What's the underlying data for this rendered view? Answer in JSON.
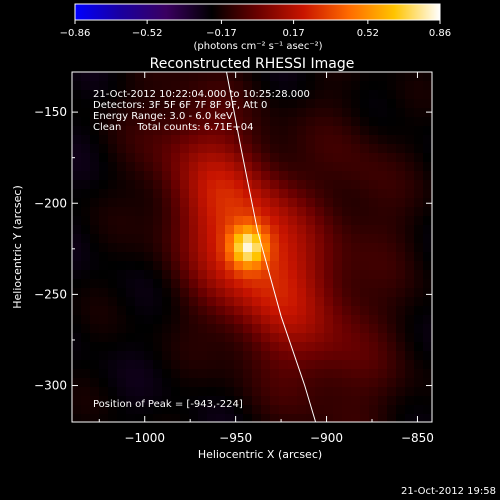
{
  "chart_data": {
    "type": "heatmap",
    "title": "Reconstructed RHESSI Image",
    "xlabel": "Heliocentric X (arcsec)",
    "ylabel": "Heliocentric Y (arcsec)",
    "xlim": [
      -1040,
      -842
    ],
    "ylim": [
      -320,
      -128
    ],
    "x_ticks": [
      -1000,
      -950,
      -900,
      -850
    ],
    "x_tick_labels": [
      "−1000",
      "−950",
      "−900",
      "−850"
    ],
    "y_ticks": [
      -150,
      -200,
      -250,
      -300
    ],
    "y_tick_labels": [
      "−150",
      "−200",
      "−250",
      "−300"
    ],
    "colorbar": {
      "range": [
        -0.86,
        0.86
      ],
      "ticks": [
        -0.86,
        -0.52,
        -0.17,
        0.17,
        0.52,
        0.86
      ],
      "tick_labels": [
        "−0.86",
        "−0.52",
        "−0.17",
        "0.17",
        "0.52",
        "0.86"
      ],
      "units_label": "(photons cm⁻² s⁻¹ asec⁻²)",
      "colors": [
        "#0000ff",
        "#1a00a0",
        "#3a0060",
        "#000000",
        "#6a0000",
        "#c81400",
        "#ff6a00",
        "#ffc400",
        "#ffffff"
      ]
    },
    "info_lines": [
      "21-Oct-2012 10:22:04.000 to 10:25:28.000",
      "Detectors: 3F 5F 6F 7F 8F 9F, Att 0",
      "Energy Range: 3.0 - 6.0 keV",
      "Clean     Total counts: 6.71E+04"
    ],
    "peak_label": "Position of Peak = [-943,-224]",
    "peak": {
      "x": -943,
      "y": -224,
      "value": 0.86
    },
    "limb_curve": [
      {
        "x": -955,
        "y": -128
      },
      {
        "x": -947,
        "y": -170
      },
      {
        "x": -938,
        "y": -215
      },
      {
        "x": -925,
        "y": -262
      },
      {
        "x": -912,
        "y": -300
      },
      {
        "x": -906,
        "y": -320
      }
    ],
    "sources": [
      {
        "x": -943,
        "y": -224,
        "sx": 7,
        "sy": 8,
        "amp": 0.55,
        "rot": 0
      },
      {
        "x": -943,
        "y": -224,
        "sx": 24,
        "sy": 36,
        "amp": 0.45,
        "rot": -0.35
      },
      {
        "x": -970,
        "y": -175,
        "sx": 22,
        "sy": 35,
        "amp": 0.18,
        "rot": -0.35
      },
      {
        "x": -902,
        "y": -270,
        "sx": 26,
        "sy": 42,
        "amp": 0.2,
        "rot": -0.35
      },
      {
        "x": -880,
        "y": -185,
        "sx": 16,
        "sy": 34,
        "amp": 0.12,
        "rot": -0.35
      }
    ],
    "background_value": -0.22,
    "timestamp": "21-Oct-2012 19:58"
  }
}
